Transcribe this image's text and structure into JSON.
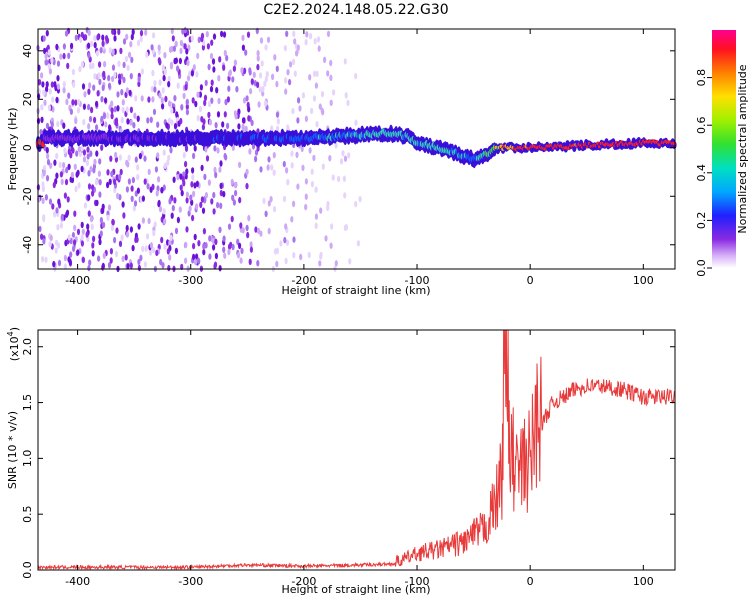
{
  "title": "C2E2.2024.148.05.22.G30",
  "colors": {
    "snr_line": "#e83a3a",
    "spectrogram_scatter": "#8a2be2",
    "ridge_low": "#3a0fd8",
    "ridge_mid": "#30d0c0",
    "ridge_high": "#ff2020",
    "ridge_green": "#40e040"
  },
  "chart_data": [
    {
      "type": "heatmap",
      "xlabel": "Height of straight line (km)",
      "ylabel": "Frequency (Hz)",
      "xlim": [
        -435,
        128
      ],
      "ylim": [
        -50,
        49
      ],
      "xticks": [
        -400,
        -300,
        -200,
        -100,
        0,
        100
      ],
      "xtick_labels": [
        "-400",
        "-300",
        "-200",
        "-100",
        "0",
        "100"
      ],
      "yticks": [
        -40,
        -20,
        0,
        20,
        40
      ],
      "ytick_labels": [
        "-40",
        "-20",
        "0",
        "20",
        "40"
      ],
      "grid": false,
      "ridge": {
        "x": [
          -430,
          -400,
          -350,
          -300,
          -250,
          -200,
          -160,
          -130,
          -110,
          -100,
          -80,
          -60,
          -50,
          -40,
          -30,
          -20,
          -10,
          0,
          50,
          100,
          128
        ],
        "y": [
          4,
          4,
          4,
          4,
          4,
          4,
          5,
          6,
          5,
          2,
          0,
          -3,
          -5,
          -3,
          0,
          0,
          0,
          0,
          1,
          2,
          2
        ],
        "amplitude": [
          0.05,
          0.08,
          0.12,
          0.2,
          0.3,
          0.35,
          0.45,
          0.55,
          0.5,
          0.5,
          0.55,
          0.45,
          0.35,
          0.55,
          0.75,
          0.85,
          0.9,
          0.95,
          0.95,
          0.95,
          0.95
        ]
      },
      "colorbar": {
        "label": "Normalized spectral amplitude",
        "range": [
          0,
          1
        ],
        "ticks": [
          0.0,
          0.2,
          0.4,
          0.6,
          0.8
        ],
        "tick_labels": [
          "0.0",
          "0.2",
          "0.4",
          "0.6",
          "0.8"
        ]
      }
    },
    {
      "type": "line",
      "xlabel": "Height of straight line (km)",
      "ylabel": "SNR (10 * v/v)",
      "scale_label": "(x10",
      "scale_exponent": "4",
      "scale_close": ")",
      "xlim": [
        -435,
        128
      ],
      "ylim": [
        0,
        2.15
      ],
      "xticks": [
        -400,
        -300,
        -200,
        -100,
        0,
        100
      ],
      "xtick_labels": [
        "-400",
        "-300",
        "-200",
        "-100",
        "0",
        "100"
      ],
      "yticks": [
        0.0,
        0.5,
        1.0,
        1.5,
        2.0
      ],
      "ytick_labels": [
        "0.0",
        "0.5",
        "1.0",
        "1.5",
        "2.0"
      ],
      "grid": false,
      "series": [
        {
          "x": [
            -435,
            -400,
            -300,
            -250,
            -200,
            -150,
            -120,
            -100,
            -80,
            -60,
            -50,
            -40,
            -30,
            -25,
            -22,
            -20,
            -15,
            -10,
            0,
            10,
            20,
            30,
            40,
            50,
            60,
            80,
            100,
            128
          ],
          "y": [
            0.01,
            0.01,
            0.01,
            0.03,
            0.02,
            0.03,
            0.04,
            0.12,
            0.15,
            0.2,
            0.25,
            0.3,
            0.5,
            0.7,
            2.15,
            0.9,
            0.8,
            0.7,
            0.8,
            1.3,
            1.5,
            1.55,
            1.62,
            1.65,
            1.65,
            1.62,
            1.55,
            1.55
          ],
          "color": "#e83a3a"
        }
      ]
    }
  ]
}
